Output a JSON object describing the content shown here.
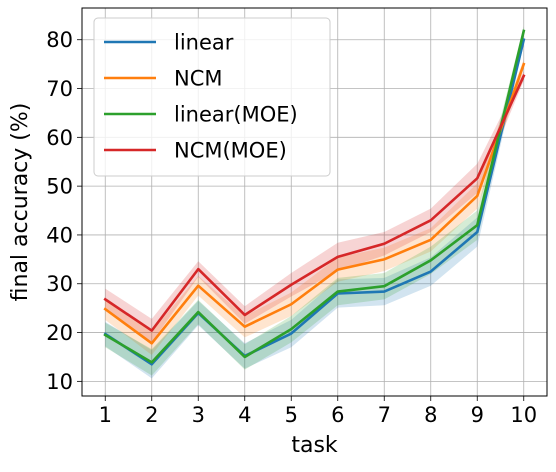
{
  "chart_data": {
    "type": "line",
    "xlabel": "task",
    "ylabel": "final accuracy (%)",
    "x": [
      1,
      2,
      3,
      4,
      5,
      6,
      7,
      8,
      9,
      10
    ],
    "xlim": [
      0.5,
      10.5
    ],
    "ylim": [
      7,
      86.5
    ],
    "xticks": [
      "1",
      "2",
      "3",
      "4",
      "5",
      "6",
      "7",
      "8",
      "9",
      "10"
    ],
    "yticks": [
      10,
      20,
      30,
      40,
      50,
      60,
      70,
      80
    ],
    "ytick_labels": [
      "10",
      "20",
      "30",
      "40",
      "50",
      "60",
      "70",
      "80"
    ],
    "grid": true,
    "legend_position": "top-left",
    "series": [
      {
        "name": "linear",
        "color": "#1f77b4",
        "values": [
          19.7,
          13.5,
          24.0,
          15.2,
          19.8,
          28.0,
          28.4,
          32.5,
          40.6,
          80.0
        ],
        "band_low": [
          17.2,
          10.6,
          21.5,
          12.6,
          17.0,
          25.1,
          25.6,
          29.6,
          37.6,
          79.0
        ],
        "band_high": [
          22.2,
          16.4,
          26.5,
          17.8,
          22.6,
          30.9,
          31.2,
          35.4,
          43.6,
          81.0
        ]
      },
      {
        "name": "NCM",
        "color": "#ff7f0e",
        "values": [
          24.8,
          17.8,
          29.6,
          21.2,
          25.8,
          32.9,
          35.0,
          39.0,
          48.0,
          75.0
        ],
        "band_low": [
          22.6,
          15.4,
          27.6,
          19.0,
          23.4,
          30.4,
          32.6,
          36.6,
          45.4,
          74.0
        ],
        "band_high": [
          27.0,
          20.2,
          31.6,
          23.4,
          28.2,
          35.4,
          37.4,
          41.4,
          50.6,
          76.0
        ]
      },
      {
        "name": "linear(MOE)",
        "color": "#2ca02c",
        "values": [
          19.5,
          13.9,
          24.2,
          15.0,
          20.7,
          28.4,
          29.5,
          34.8,
          42.0,
          81.8
        ],
        "band_low": [
          17.0,
          11.2,
          21.7,
          12.4,
          18.0,
          25.6,
          26.8,
          32.0,
          39.0,
          80.8
        ],
        "band_high": [
          22.0,
          16.6,
          26.7,
          17.6,
          23.4,
          31.2,
          32.2,
          37.6,
          45.0,
          82.8
        ]
      },
      {
        "name": "NCM(MOE)",
        "color": "#d62728",
        "values": [
          26.8,
          20.4,
          33.0,
          23.6,
          29.8,
          35.5,
          38.2,
          43.0,
          51.6,
          72.6
        ],
        "band_low": [
          24.6,
          18.0,
          31.4,
          21.8,
          27.4,
          32.6,
          35.8,
          40.6,
          48.6,
          71.6
        ],
        "band_high": [
          29.0,
          22.8,
          34.6,
          25.4,
          32.2,
          38.4,
          40.6,
          45.4,
          54.6,
          73.6
        ]
      }
    ]
  }
}
